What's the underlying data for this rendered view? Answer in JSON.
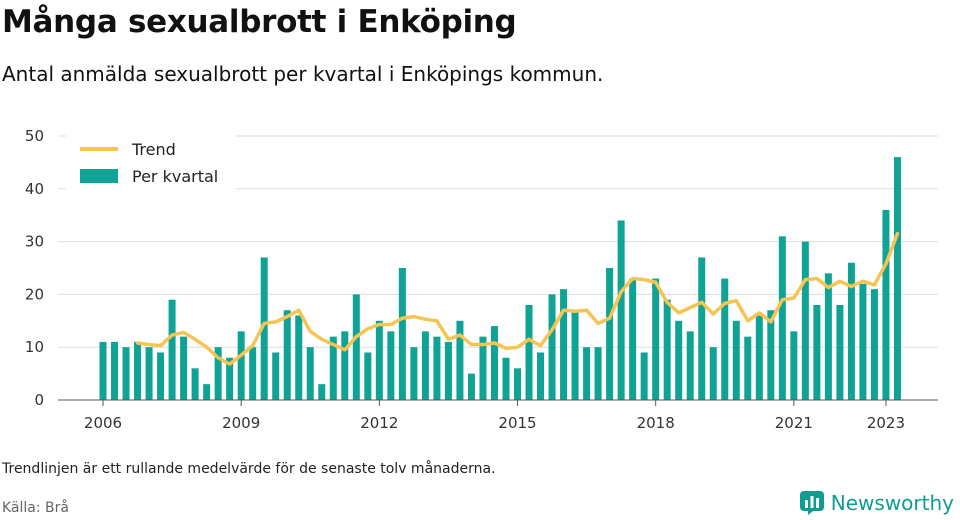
{
  "header": {
    "title": "Många sexualbrott i Enköping",
    "subtitle": "Antal anmälda sexualbrott per kvartal i Enköpings kommun."
  },
  "footer": {
    "note": "Trendlinjen är ett rullande medelvärde för de senaste tolv månaderna.",
    "source": "Källa: Brå",
    "brand": "Newsworthy"
  },
  "colors": {
    "bars": "#0fa395",
    "trend": "#f5c453",
    "grid": "#dddddd"
  },
  "chart_data": {
    "type": "bar",
    "xaxis_ticks": [
      "2006",
      "2009",
      "2012",
      "2015",
      "2018",
      "2021",
      "2023"
    ],
    "ylim": [
      0,
      50
    ],
    "yticks": [
      0,
      10,
      20,
      30,
      40,
      50
    ],
    "grid": true,
    "legend_position": "top-left",
    "x": [
      "2006 Q1",
      "2006 Q2",
      "2006 Q3",
      "2006 Q4",
      "2007 Q1",
      "2007 Q2",
      "2007 Q3",
      "2007 Q4",
      "2008 Q1",
      "2008 Q2",
      "2008 Q3",
      "2008 Q4",
      "2009 Q1",
      "2009 Q2",
      "2009 Q3",
      "2009 Q4",
      "2010 Q1",
      "2010 Q2",
      "2010 Q3",
      "2010 Q4",
      "2011 Q1",
      "2011 Q2",
      "2011 Q3",
      "2011 Q4",
      "2012 Q1",
      "2012 Q2",
      "2012 Q3",
      "2012 Q4",
      "2013 Q1",
      "2013 Q2",
      "2013 Q3",
      "2013 Q4",
      "2014 Q1",
      "2014 Q2",
      "2014 Q3",
      "2014 Q4",
      "2015 Q1",
      "2015 Q2",
      "2015 Q3",
      "2015 Q4",
      "2016 Q1",
      "2016 Q2",
      "2016 Q3",
      "2016 Q4",
      "2017 Q1",
      "2017 Q2",
      "2017 Q3",
      "2017 Q4",
      "2018 Q1",
      "2018 Q2",
      "2018 Q3",
      "2018 Q4",
      "2019 Q1",
      "2019 Q2",
      "2019 Q3",
      "2019 Q4",
      "2020 Q1",
      "2020 Q2",
      "2020 Q3",
      "2020 Q4",
      "2021 Q1",
      "2021 Q2",
      "2021 Q3",
      "2021 Q4",
      "2022 Q1",
      "2022 Q2",
      "2022 Q3",
      "2022 Q4",
      "2023 Q1",
      "2023 Q2"
    ],
    "series": [
      {
        "name": "Per kvartal",
        "type": "bar",
        "values": [
          11,
          11,
          10,
          11,
          10,
          9,
          19,
          12,
          6,
          3,
          10,
          8,
          13,
          10,
          27,
          9,
          17,
          16,
          10,
          3,
          12,
          13,
          20,
          9,
          15,
          13,
          25,
          10,
          13,
          12,
          11,
          15,
          5,
          12,
          14,
          8,
          6,
          18,
          9,
          20,
          21,
          17,
          10,
          10,
          25,
          34,
          23,
          9,
          23,
          19,
          15,
          13,
          27,
          10,
          23,
          15,
          12,
          16,
          17,
          31,
          13,
          30,
          18,
          24,
          18,
          26,
          22,
          21,
          36,
          46
        ]
      },
      {
        "name": "Trend",
        "type": "line",
        "values": [
          null,
          null,
          null,
          10.8,
          10.5,
          10.3,
          12.3,
          12.8,
          11.5,
          10.0,
          8.0,
          6.8,
          8.5,
          10.3,
          14.5,
          14.8,
          15.8,
          17.0,
          13.0,
          11.5,
          10.5,
          9.5,
          12.0,
          13.5,
          14.3,
          14.3,
          15.5,
          15.8,
          15.3,
          15.0,
          11.5,
          12.3,
          10.5,
          10.5,
          10.8,
          9.8,
          10.0,
          11.5,
          10.3,
          13.3,
          17.0,
          16.8,
          17.0,
          14.5,
          15.5,
          20.5,
          23.0,
          22.8,
          22.3,
          18.5,
          16.5,
          17.5,
          18.5,
          16.3,
          18.3,
          18.8,
          15.0,
          16.5,
          14.8,
          19.0,
          19.3,
          22.8,
          23.0,
          21.3,
          22.5,
          21.5,
          22.5,
          21.8,
          25.8,
          31.5
        ]
      }
    ]
  }
}
